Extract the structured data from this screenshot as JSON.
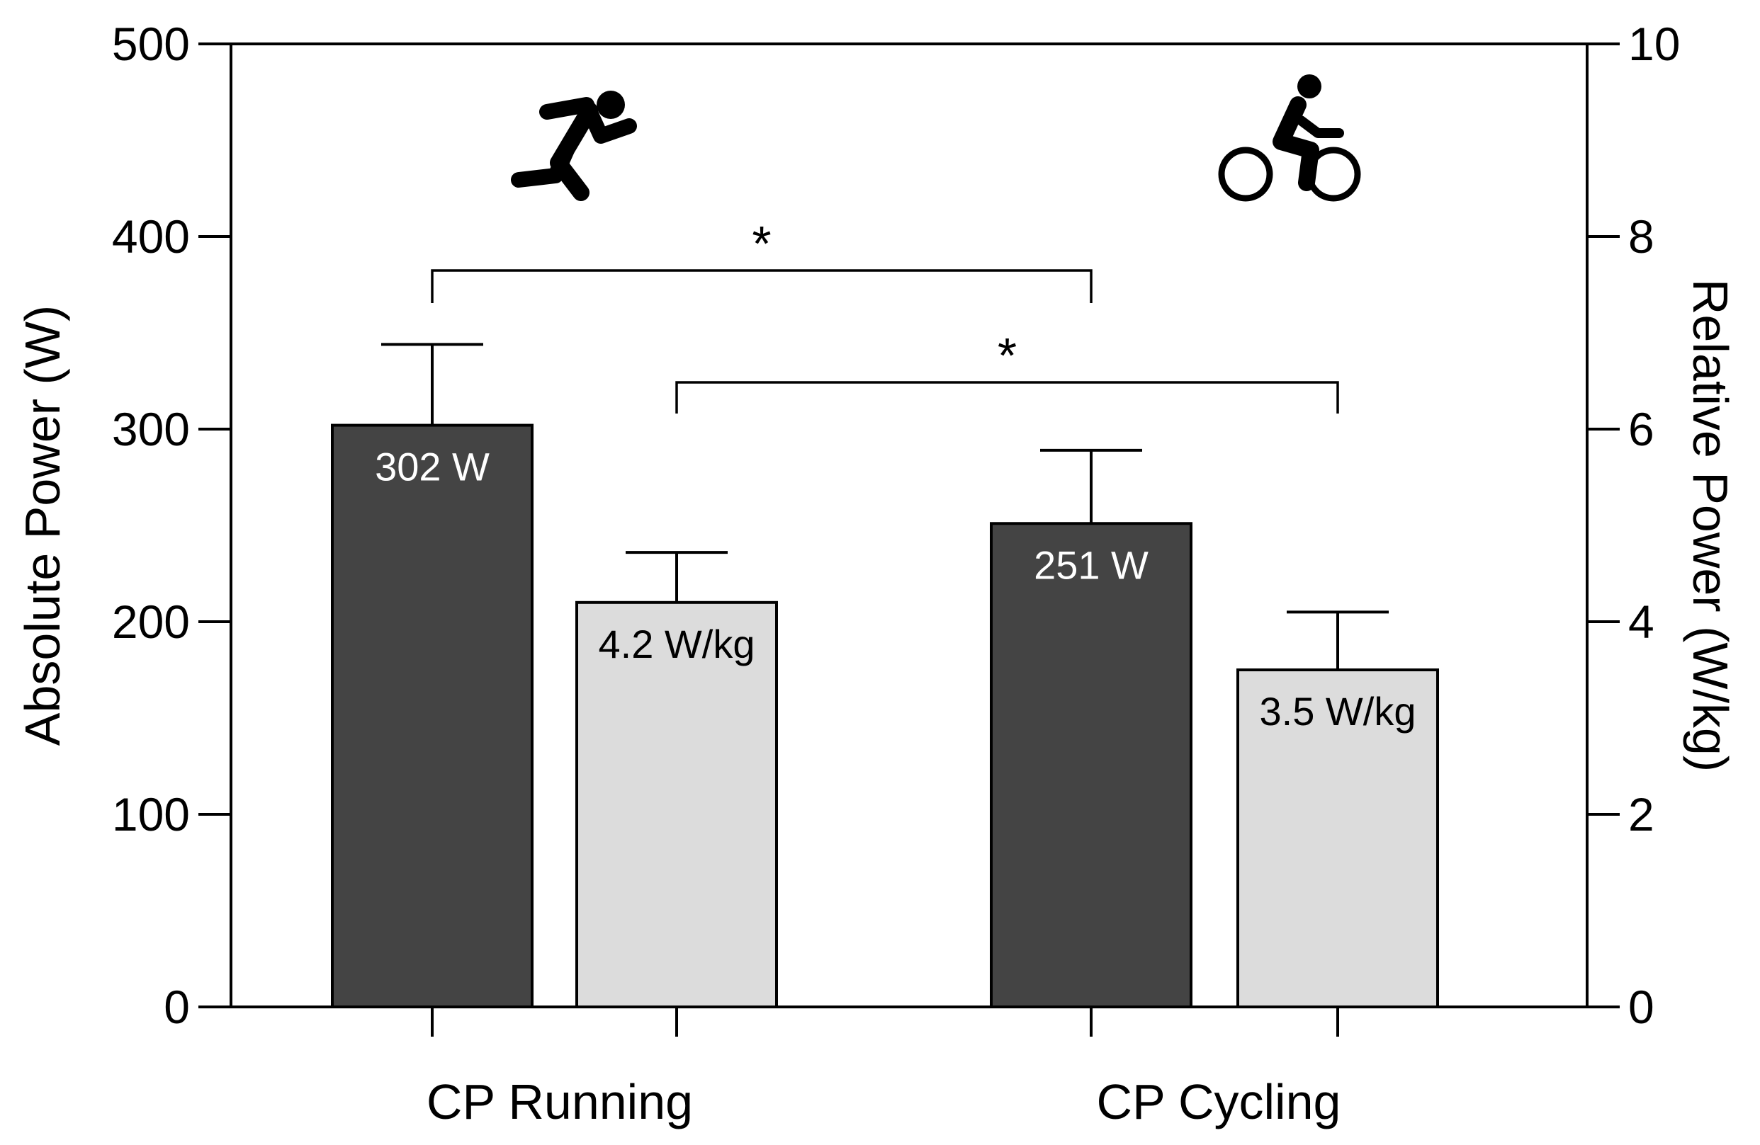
{
  "chart_data": {
    "type": "bar",
    "categories": [
      "CP Running",
      "CP Cycling"
    ],
    "left_axis": {
      "label": "Absolute  Power (W)",
      "ylim": [
        0,
        500
      ],
      "ticks": [
        0,
        100,
        200,
        300,
        400,
        500
      ]
    },
    "right_axis": {
      "label": "Relative  Power (W/kg)",
      "ylim": [
        0,
        10
      ],
      "ticks": [
        0,
        2,
        4,
        6,
        8,
        10
      ]
    },
    "series": [
      {
        "axis": "left",
        "color": "#444444",
        "label_color": "#ffffff",
        "values": [
          302,
          251
        ],
        "errors": [
          42,
          38
        ],
        "data_labels": [
          "302 W",
          "251 W"
        ]
      },
      {
        "axis": "right",
        "color": "#dcdcdc",
        "label_color": "#000000",
        "values": [
          4.2,
          3.5
        ],
        "errors": [
          0.52,
          0.6
        ],
        "data_labels": [
          "4.2 W/kg",
          "3.5 W/kg"
        ]
      }
    ],
    "significance": [
      {
        "from_series": 0,
        "from_category": 0,
        "to_category": 1,
        "symbol": "*"
      },
      {
        "from_series": 1,
        "from_category": 0,
        "to_category": 1,
        "symbol": "*"
      }
    ],
    "icons": [
      "running-icon",
      "cycling-icon"
    ],
    "grid": false,
    "legend": "none"
  }
}
